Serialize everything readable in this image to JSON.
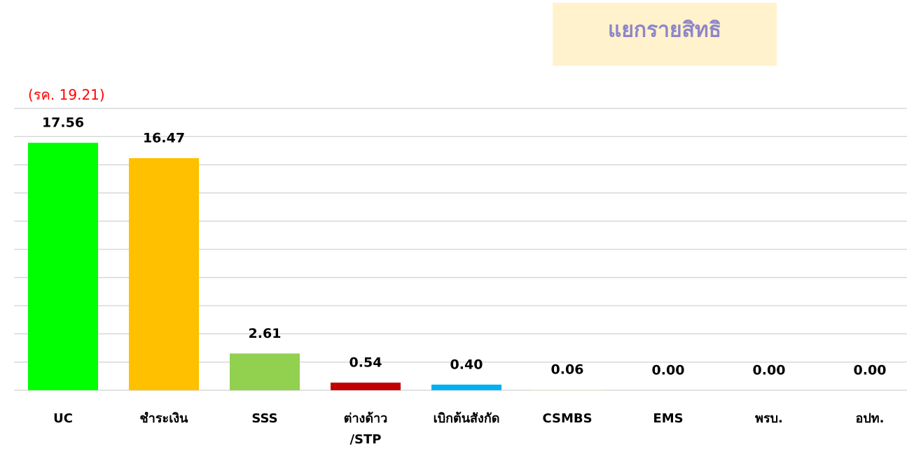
{
  "chart_data": {
    "type": "bar",
    "title": "แยกรายสิทธิ",
    "annotation": "(รค. 19.21)",
    "categories": [
      "UC",
      "ชำระเงิน",
      "SSS",
      "ต่างด้าว\n/STP",
      "เบิกต้นสังกัด",
      "CSMBS",
      "EMS",
      "พรบ.",
      "อปท."
    ],
    "values": [
      17.56,
      16.47,
      2.61,
      0.54,
      0.4,
      0.06,
      0,
      0,
      0
    ],
    "value_labels": [
      "17.56",
      "16.47",
      "2.61",
      "0.54",
      "0.40",
      "0.06",
      "0.00",
      "0.00",
      "0.00"
    ],
    "colors": [
      "#00ff00",
      "#ffc000",
      "#92d050",
      "#c00000",
      "#00b0f0",
      "#f2f2cc",
      "#cccccc",
      "#cccccc",
      "#cccccc"
    ],
    "ylim": [
      0,
      20
    ],
    "yticks": [
      0,
      2,
      4,
      6,
      8,
      10,
      12,
      14,
      16,
      18,
      20
    ],
    "grid": true
  }
}
